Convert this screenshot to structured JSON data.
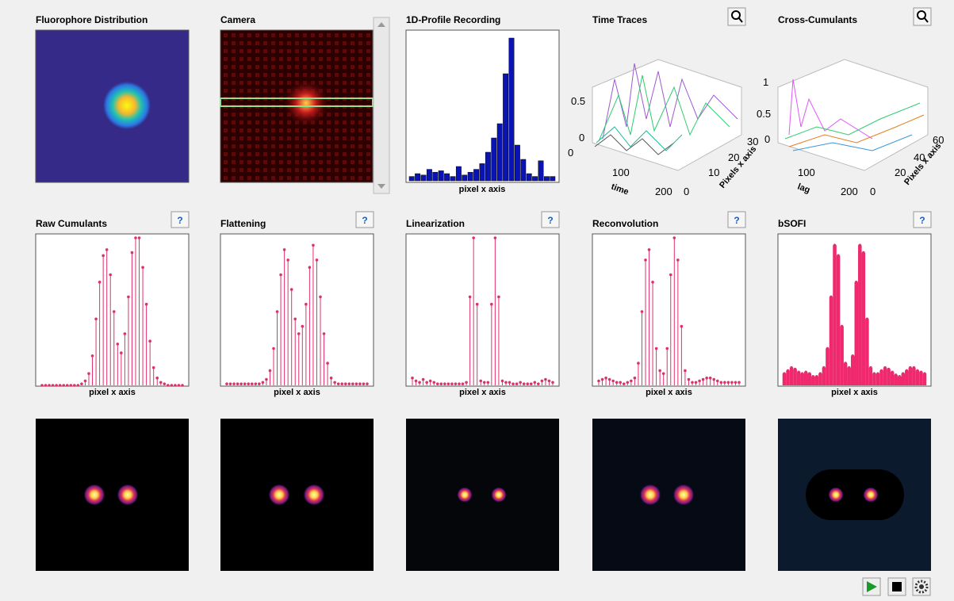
{
  "value_range": [
    0,
    100
  ],
  "top_panels": [
    {
      "title": "Fluorophore Distribution"
    },
    {
      "title": "Camera"
    },
    {
      "title": "1D-Profile Recording",
      "x_label": "pixel x axis",
      "values": [
        3,
        5,
        4,
        8,
        6,
        7,
        5,
        3,
        10,
        4,
        6,
        8,
        12,
        20,
        30,
        40,
        75,
        100,
        25,
        15,
        5,
        3,
        14,
        3,
        3
      ]
    },
    {
      "title": "Time Traces",
      "tick_labels": [
        "0.5",
        "0",
        "0",
        "100",
        "200",
        "0",
        "10",
        "20",
        "30"
      ],
      "x_label": "time",
      "y_label": "Pixels x axis"
    },
    {
      "title": "Cross-Cumulants",
      "tick_labels": [
        "1",
        "0.5",
        "0",
        "100",
        "200",
        "0",
        "20",
        "40",
        "60"
      ],
      "x_label": "lag",
      "y_label": "Pixels x axis"
    }
  ],
  "steps": [
    {
      "title": "Raw Cumulants",
      "x_label": "pixel x axis",
      "values": [
        0,
        0,
        0,
        0,
        0,
        0,
        0,
        0,
        0,
        0,
        0,
        1,
        3,
        8,
        20,
        45,
        70,
        88,
        92,
        75,
        50,
        28,
        22,
        35,
        60,
        90,
        100,
        100,
        80,
        55,
        30,
        12,
        5,
        2,
        1,
        0,
        0,
        0,
        0,
        0
      ]
    },
    {
      "title": "Flattening",
      "x_label": "pixel x axis",
      "values": [
        1,
        1,
        1,
        1,
        1,
        1,
        1,
        1,
        1,
        1,
        2,
        4,
        10,
        25,
        50,
        75,
        92,
        85,
        65,
        45,
        35,
        40,
        55,
        80,
        95,
        85,
        60,
        35,
        15,
        5,
        2,
        1,
        1,
        1,
        1,
        1,
        1,
        1,
        1,
        1
      ]
    },
    {
      "title": "Linearization",
      "x_label": "pixel x axis",
      "values": [
        5,
        3,
        2,
        4,
        2,
        3,
        2,
        1,
        1,
        1,
        1,
        1,
        1,
        1,
        1,
        2,
        60,
        100,
        55,
        3,
        2,
        2,
        55,
        100,
        60,
        3,
        2,
        2,
        1,
        1,
        2,
        1,
        1,
        1,
        2,
        1,
        3,
        4,
        3,
        2
      ]
    },
    {
      "title": "Reconvolution",
      "x_label": "pixel x axis",
      "values": [
        3,
        4,
        5,
        4,
        3,
        2,
        2,
        1,
        2,
        3,
        5,
        15,
        50,
        85,
        92,
        70,
        25,
        10,
        8,
        25,
        75,
        100,
        85,
        40,
        10,
        4,
        2,
        2,
        3,
        4,
        5,
        5,
        4,
        3,
        2,
        2,
        2,
        2,
        2,
        2
      ]
    },
    {
      "title": "bSOFI",
      "x_label": "pixel x axis",
      "values": [
        8,
        10,
        12,
        11,
        9,
        8,
        9,
        8,
        6,
        6,
        8,
        12,
        25,
        60,
        95,
        88,
        40,
        15,
        12,
        20,
        70,
        95,
        90,
        45,
        12,
        8,
        8,
        10,
        12,
        11,
        9,
        7,
        6,
        8,
        10,
        12,
        12,
        10,
        9,
        8
      ]
    }
  ],
  "help_button": "?"
}
